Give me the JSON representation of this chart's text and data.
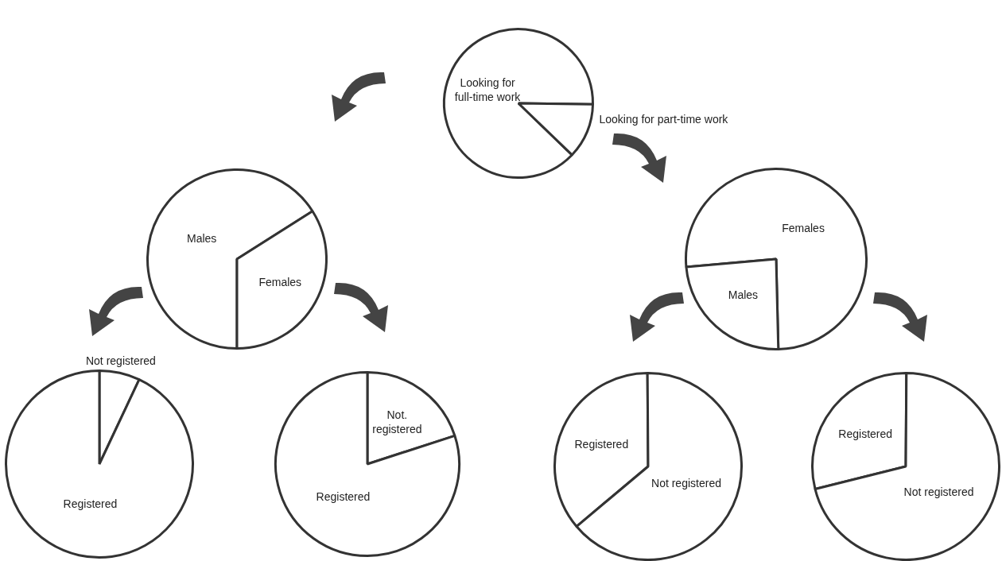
{
  "chart_data": [
    {
      "type": "pie",
      "categories": [
        "Looking for full-time work",
        "Looking for part-time work"
      ],
      "values": [
        88,
        12
      ],
      "colors": [
        "#ffffff",
        "#ffffff"
      ]
    },
    {
      "type": "pie",
      "categories": [
        "Males",
        "Females"
      ],
      "values": [
        66,
        34
      ],
      "colors": [
        "#ffffff",
        "#ffffff"
      ]
    },
    {
      "type": "pie",
      "categories": [
        "Females",
        "Males"
      ],
      "values": [
        76,
        24
      ],
      "colors": [
        "#ffffff",
        "#ffffff"
      ]
    },
    {
      "type": "pie",
      "categories": [
        "Not registered",
        "Registered"
      ],
      "values": [
        7,
        93
      ],
      "colors": [
        "#ffffff",
        "#ffffff"
      ]
    },
    {
      "type": "pie",
      "categories": [
        "Not. registered",
        "Registered"
      ],
      "values": [
        20,
        80
      ],
      "colors": [
        "#ffffff",
        "#ffffff"
      ]
    },
    {
      "type": "pie",
      "categories": [
        "Registered",
        "Not registered"
      ],
      "values": [
        36,
        64
      ],
      "colors": [
        "#ffffff",
        "#ffffff"
      ]
    },
    {
      "type": "pie",
      "categories": [
        "Registered",
        "Not registered"
      ],
      "values": [
        29,
        71
      ],
      "colors": [
        "#ffffff",
        "#ffffff"
      ]
    }
  ]
}
